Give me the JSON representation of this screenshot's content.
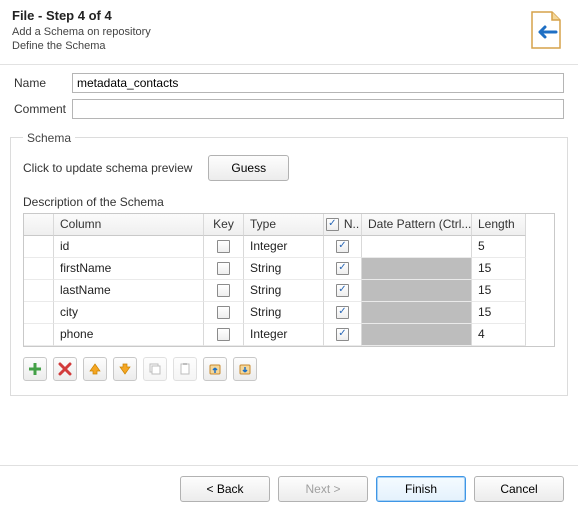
{
  "header": {
    "title": "File - Step 4 of 4",
    "subtitle1": "Add a Schema on repository",
    "subtitle2": "Define the Schema"
  },
  "form": {
    "name_label": "Name",
    "name_value": "metadata_contacts",
    "comment_label": "Comment",
    "comment_value": ""
  },
  "schema": {
    "legend": "Schema",
    "guess_hint": "Click to update schema preview",
    "guess_btn": "Guess",
    "desc_label": "Description of the Schema",
    "columns": {
      "col": "Column",
      "key": "Key",
      "type": "Type",
      "n": "N..",
      "date": "Date Pattern (Ctrl...",
      "length": "Length"
    },
    "rows": [
      {
        "name": "id",
        "key": false,
        "type": "Integer",
        "n": true,
        "date_shaded": false,
        "length": "5"
      },
      {
        "name": "firstName",
        "key": false,
        "type": "String",
        "n": true,
        "date_shaded": true,
        "length": "15"
      },
      {
        "name": "lastName",
        "key": false,
        "type": "String",
        "n": true,
        "date_shaded": true,
        "length": "15"
      },
      {
        "name": "city",
        "key": false,
        "type": "String",
        "n": true,
        "date_shaded": true,
        "length": "15"
      },
      {
        "name": "phone",
        "key": false,
        "type": "Integer",
        "n": true,
        "date_shaded": true,
        "length": "4"
      }
    ]
  },
  "footer": {
    "back": "< Back",
    "next": "Next >",
    "finish": "Finish",
    "cancel": "Cancel"
  },
  "colors": {
    "accent": "#3f96e6",
    "shade": "#bdbdbd",
    "add": "#43a047",
    "remove": "#d23b3b",
    "arrow": "#f5a623",
    "copy": "#8a8a8a",
    "import": "#c78a2e"
  }
}
